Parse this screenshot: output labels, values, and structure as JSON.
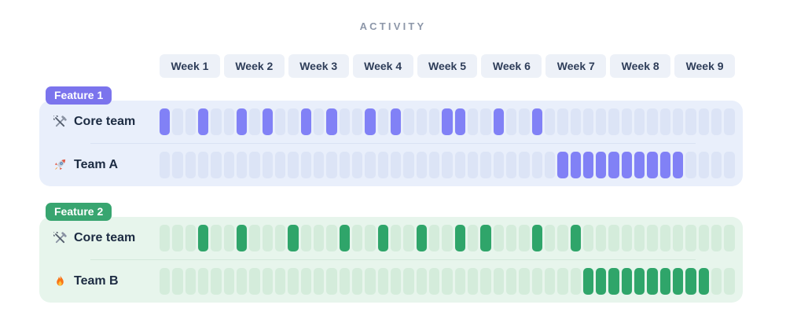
{
  "title": "ACTIVITY",
  "weeks": [
    "Week 1",
    "Week 2",
    "Week 3",
    "Week 4",
    "Week 5",
    "Week 6",
    "Week 7",
    "Week 8",
    "Week 9"
  ],
  "features": [
    {
      "label": "Feature 1",
      "badge_color": "#7b74ed",
      "panel_bg": "#e9effb",
      "cell_on": "#8181f6",
      "cell_off": "#dce4f6",
      "separator_color": "#d9e2f3",
      "rows": [
        {
          "icon": "tools-icon",
          "label": "Core team",
          "active_cells": [
            1,
            4,
            7,
            9,
            12,
            14,
            17,
            19,
            23,
            24,
            27,
            30
          ]
        },
        {
          "icon": "rocket-icon",
          "label": "Team A",
          "active_cells": [
            32,
            33,
            34,
            35,
            36,
            37,
            38,
            39,
            40,
            41
          ]
        }
      ]
    },
    {
      "label": "Feature 2",
      "badge_color": "#38a570",
      "panel_bg": "#e7f5ec",
      "cell_on": "#2fa56a",
      "cell_off": "#d4ecdb",
      "separator_color": "#d3e8da",
      "rows": [
        {
          "icon": "tools-icon",
          "label": "Core team",
          "active_cells": [
            4,
            7,
            11,
            15,
            18,
            21,
            24,
            26,
            30,
            33
          ]
        },
        {
          "icon": "fire-icon",
          "label": "Team B",
          "active_cells": [
            34,
            35,
            36,
            37,
            38,
            39,
            40,
            41,
            42,
            43
          ]
        }
      ]
    }
  ],
  "chart_data": {
    "type": "heatmap",
    "title": "ACTIVITY",
    "x_labels": [
      "Week 1",
      "Week 2",
      "Week 3",
      "Week 4",
      "Week 5",
      "Week 6",
      "Week 7",
      "Week 8",
      "Week 9"
    ],
    "cells_per_week": 5,
    "total_cells": 45,
    "legend_position": "none",
    "grid": false,
    "series": [
      {
        "group": "Feature 1",
        "name": "Core team",
        "color": "#8181f6",
        "active_cells": [
          1,
          4,
          7,
          9,
          12,
          14,
          17,
          19,
          23,
          24,
          27,
          30
        ]
      },
      {
        "group": "Feature 1",
        "name": "Team A",
        "color": "#8181f6",
        "active_cells": [
          32,
          33,
          34,
          35,
          36,
          37,
          38,
          39,
          40,
          41
        ]
      },
      {
        "group": "Feature 2",
        "name": "Core team",
        "color": "#2fa56a",
        "active_cells": [
          4,
          7,
          11,
          15,
          18,
          21,
          24,
          26,
          30,
          33
        ]
      },
      {
        "group": "Feature 2",
        "name": "Team B",
        "color": "#2fa56a",
        "active_cells": [
          34,
          35,
          36,
          37,
          38,
          39,
          40,
          41,
          42,
          43
        ]
      }
    ]
  }
}
